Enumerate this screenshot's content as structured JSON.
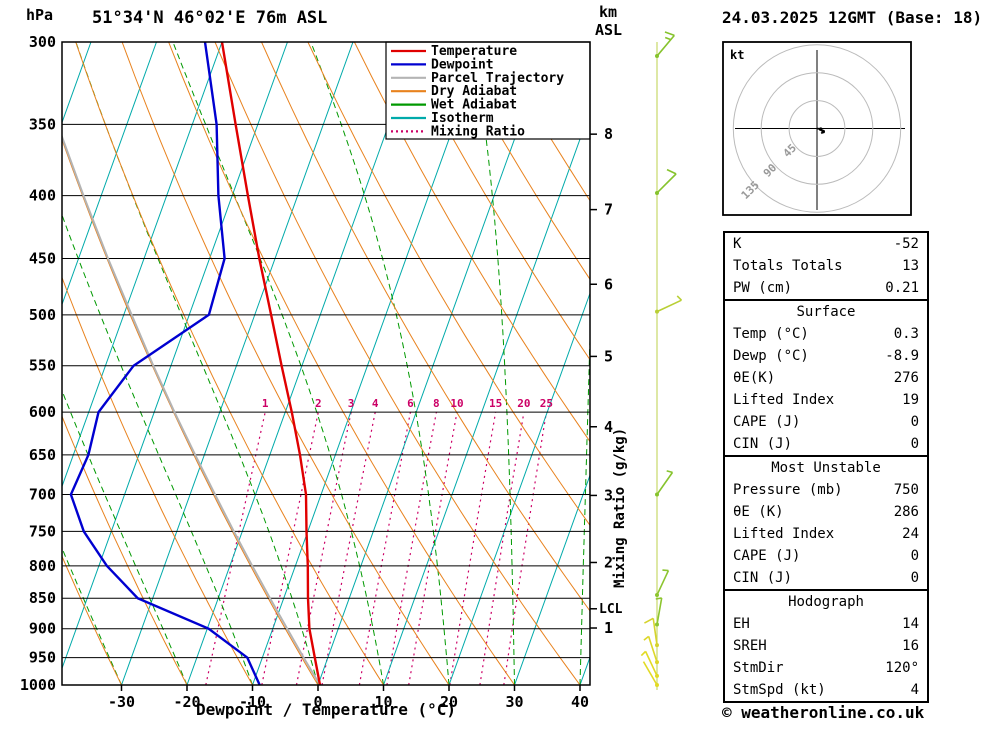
{
  "header": {
    "hpa": "hPa",
    "title": "51°34'N 46°02'E 76m ASL",
    "km": "km",
    "asl": "ASL",
    "date": "24.03.2025 12GMT (Base: 18)"
  },
  "footer": {
    "copyright": "© weatheronline.co.uk"
  },
  "axes": {
    "xlabel": "Dewpoint / Temperature (°C)",
    "mixing_label": "Mixing Ratio (g/kg)",
    "pressure_ticks": [
      300,
      350,
      400,
      450,
      500,
      550,
      600,
      650,
      700,
      750,
      800,
      850,
      900,
      950,
      1000
    ],
    "temp_ticks": [
      -30,
      -20,
      -10,
      0,
      10,
      20,
      30,
      40
    ],
    "km_ticks": [
      {
        "km": 8,
        "p": 356.5
      },
      {
        "km": 7,
        "p": 410.6
      },
      {
        "km": 6,
        "p": 472.2
      },
      {
        "km": 5,
        "p": 540.5
      },
      {
        "km": 4,
        "p": 616.6
      },
      {
        "km": 3,
        "p": 701.2
      },
      {
        "km": 2,
        "p": 795.0
      },
      {
        "km": 1,
        "p": 898.8
      }
    ],
    "lcl": {
      "label": "LCL",
      "p": 867
    }
  },
  "chart_data": {
    "type": "skewt-logp",
    "pressure_range": [
      300,
      1000
    ],
    "temp_axis_range": [
      -40,
      40
    ],
    "isotherm_step": 10,
    "dry_adiabat_step": 10,
    "wet_adiabat_step": 10,
    "mixing_ratio_lines": [
      1,
      2,
      3,
      4,
      6,
      8,
      10,
      15,
      20,
      25
    ],
    "temperature_profile": [
      [
        1000,
        0.3
      ],
      [
        950,
        -2.0
      ],
      [
        900,
        -4.4
      ],
      [
        850,
        -6.3
      ],
      [
        800,
        -8.1
      ],
      [
        750,
        -10.2
      ],
      [
        700,
        -12.3
      ],
      [
        650,
        -15.4
      ],
      [
        600,
        -19.0
      ],
      [
        550,
        -23.1
      ],
      [
        500,
        -27.5
      ],
      [
        450,
        -32.4
      ],
      [
        400,
        -37.6
      ],
      [
        350,
        -43.4
      ],
      [
        300,
        -50.0
      ]
    ],
    "dewpoint_profile": [
      [
        1000,
        -8.9
      ],
      [
        950,
        -12.3
      ],
      [
        900,
        -19.8
      ],
      [
        850,
        -32.3
      ],
      [
        800,
        -38.8
      ],
      [
        750,
        -44.2
      ],
      [
        700,
        -48.2
      ],
      [
        650,
        -47.7
      ],
      [
        600,
        -48.5
      ],
      [
        550,
        -45.7
      ],
      [
        500,
        -37.0
      ],
      [
        450,
        -37.7
      ],
      [
        400,
        -42.1
      ],
      [
        350,
        -46.3
      ],
      [
        300,
        -52.6
      ]
    ],
    "parcel_profile": [
      [
        1000,
        0.3
      ],
      [
        950,
        -3.7
      ],
      [
        900,
        -7.8
      ],
      [
        850,
        -12.1
      ],
      [
        800,
        -16.6
      ],
      [
        750,
        -21.3
      ],
      [
        700,
        -26.2
      ],
      [
        650,
        -31.4
      ],
      [
        600,
        -36.9
      ],
      [
        550,
        -42.7
      ],
      [
        500,
        -48.8
      ],
      [
        450,
        -55.5
      ],
      [
        400,
        -62.7
      ],
      [
        350,
        -70.6
      ],
      [
        300,
        -79.3
      ]
    ],
    "colors": {
      "temperature": "#e00000",
      "dewpoint": "#0000d0",
      "parcel": "#b4b4b4",
      "dry_adiabat": "#e8821e",
      "wet_adiabat": "#009900",
      "isotherm": "#00aaaa",
      "mixing_ratio": "#cc0066",
      "axis": "#000000",
      "barb_line": "#c9d96a",
      "ring": "#bbbbbb",
      "ring_label": "#999999"
    },
    "legend": [
      {
        "label": "Temperature",
        "color": "#e00000"
      },
      {
        "label": "Dewpoint",
        "color": "#0000d0"
      },
      {
        "label": "Parcel Trajectory",
        "color": "#b4b4b4"
      },
      {
        "label": "Dry Adiabat",
        "color": "#e8821e"
      },
      {
        "label": "Wet Adiabat",
        "color": "#009900"
      },
      {
        "label": "Isotherm",
        "color": "#00aaaa"
      },
      {
        "label": "Mixing Ratio",
        "color": "#cc0066",
        "dash": "2 3"
      }
    ],
    "wind_barbs": [
      {
        "p": 308,
        "dir": 40,
        "spd": 15,
        "color": "#86c32d"
      },
      {
        "p": 398,
        "dir": 45,
        "spd": 10,
        "color": "#86c32d"
      },
      {
        "p": 497,
        "dir": 65,
        "spd": 5,
        "color": "#b9cf35"
      },
      {
        "p": 700,
        "dir": 35,
        "spd": 5,
        "color": "#86c32d"
      },
      {
        "p": 845,
        "dir": 25,
        "spd": 5,
        "color": "#8cc52f"
      },
      {
        "p": 893,
        "dir": 10,
        "spd": 5,
        "color": "#8cc52f"
      },
      {
        "p": 928,
        "dir": 352,
        "spd": 10,
        "color": "#d6d32c"
      },
      {
        "p": 958,
        "dir": 342,
        "spd": 5,
        "color": "#ddd728"
      },
      {
        "p": 983,
        "dir": 335,
        "spd": 5,
        "color": "#e2da24"
      },
      {
        "p": 1000,
        "dir": 330,
        "spd": 3,
        "color": "#e2da24"
      }
    ],
    "hodograph": {
      "unit_label": "kt",
      "rings_kt": [
        45,
        90,
        135
      ],
      "trace_uv_kt": [
        [
          0,
          0
        ],
        [
          6,
          -1
        ],
        [
          10,
          -5
        ],
        [
          7,
          -8
        ]
      ]
    }
  },
  "tables": {
    "sections": [
      {
        "rows": [
          [
            "K",
            "-52"
          ],
          [
            "Totals Totals",
            "13"
          ],
          [
            "PW (cm)",
            "0.21"
          ]
        ]
      },
      {
        "title": "Surface",
        "rows": [
          [
            "Temp (°C)",
            "0.3"
          ],
          [
            "Dewp (°C)",
            "-8.9"
          ],
          [
            "θE(K)",
            "276"
          ],
          [
            "Lifted Index",
            "19"
          ],
          [
            "CAPE (J)",
            "0"
          ],
          [
            "CIN (J)",
            "0"
          ]
        ]
      },
      {
        "title": "Most Unstable",
        "rows": [
          [
            "Pressure (mb)",
            "750"
          ],
          [
            "θE (K)",
            "286"
          ],
          [
            "Lifted Index",
            "24"
          ],
          [
            "CAPE (J)",
            "0"
          ],
          [
            "CIN (J)",
            "0"
          ]
        ]
      },
      {
        "title": "Hodograph",
        "rows": [
          [
            "EH",
            "14"
          ],
          [
            "SREH",
            "16"
          ],
          [
            "StmDir",
            "120°"
          ],
          [
            "StmSpd (kt)",
            "4"
          ]
        ]
      }
    ]
  }
}
